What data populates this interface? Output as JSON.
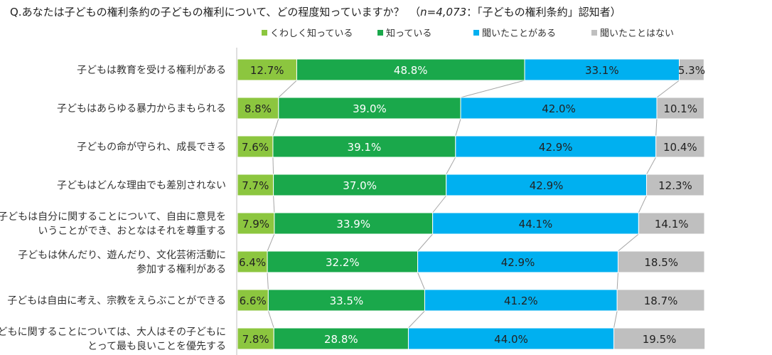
{
  "title": {
    "prefix": "Q.あなたは子どもの権利条約の子どもの権利について、どの程度知っていますか？　（",
    "n_text": "n=4,073",
    "suffix": "：「子どもの権利条約」認知者）"
  },
  "chart_data": {
    "type": "bar",
    "orientation": "horizontal",
    "stacked": "100%",
    "legend_position": "top",
    "colors": [
      "#8cc63f",
      "#1aa84b",
      "#00b0f0",
      "#bfbfbf"
    ],
    "categories": [
      [
        "子どもは教育を受ける権利がある"
      ],
      [
        "子どもはあらゆる暴力からまもられる"
      ],
      [
        "子どもの命が守られ、成長できる"
      ],
      [
        "子どもはどんな理由でも差別されない"
      ],
      [
        "子どもは自分に関することについて、自由に意見を",
        "いうことができ、おとなはそれを尊重する"
      ],
      [
        "子どもは休んだり、遊んだり、文化芸術活動に",
        "参加する権利がある"
      ],
      [
        "子どもは自由に考え、宗教をえらぶことができる"
      ],
      [
        "子どもに関することについては、大人はその子どもに",
        "とって最も良いことを優先する"
      ]
    ],
    "series": [
      {
        "name": "くわしく知っている",
        "values": [
          12.7,
          8.8,
          7.6,
          7.7,
          7.9,
          6.4,
          6.6,
          7.8
        ],
        "labels": [
          "12.7%",
          "8.8%",
          "7.6%",
          "7.7%",
          "7.9%",
          "6.4%",
          "6.6%",
          "7.8%"
        ]
      },
      {
        "name": "知っている",
        "values": [
          48.8,
          39.0,
          39.1,
          37.0,
          33.9,
          32.2,
          33.5,
          28.8
        ],
        "labels": [
          "48.8%",
          "39.0%",
          "39.1%",
          "37.0%",
          "33.9%",
          "32.2%",
          "33.5%",
          "28.8%"
        ]
      },
      {
        "name": "聞いたことがある",
        "values": [
          33.1,
          42.0,
          42.9,
          42.9,
          44.1,
          42.9,
          41.2,
          44.0
        ],
        "labels": [
          "33.1%",
          "42.0%",
          "42.9%",
          "42.9%",
          "44.1%",
          "42.9%",
          "41.2%",
          "44.0%"
        ]
      },
      {
        "name": "聞いたことはない",
        "values": [
          5.3,
          10.1,
          10.4,
          12.3,
          14.1,
          18.5,
          18.7,
          19.5
        ],
        "labels": [
          "5.3%",
          "10.1%",
          "10.4%",
          "12.3%",
          "14.1%",
          "18.5%",
          "18.7%",
          "19.5%"
        ]
      }
    ]
  }
}
